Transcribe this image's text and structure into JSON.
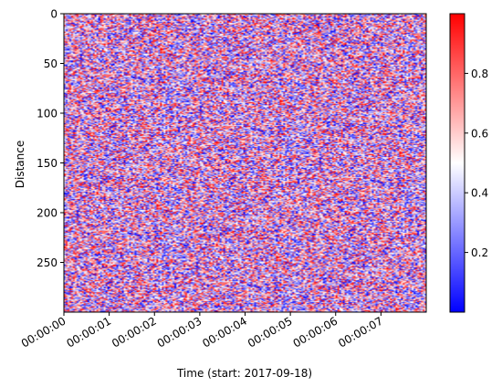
{
  "chart_data": {
    "type": "heatmap",
    "title": "",
    "xlabel": "Time (start: 2017-09-18)",
    "ylabel": "Distance",
    "x_start": "00:00:00",
    "x_end": "00:00:08",
    "x_ticks": [
      "00:00:00",
      "00:00:01",
      "00:00:02",
      "00:00:03",
      "00:00:04",
      "00:00:05",
      "00:00:06",
      "00:00:07"
    ],
    "y_ticks": [
      0,
      50,
      100,
      150,
      200,
      250
    ],
    "ylim": [
      300,
      0
    ],
    "colormap": "bwr",
    "colormap_colors": {
      "low": "#0000ff",
      "mid": "#ffffff",
      "high": "#ff0000"
    },
    "colorbar": {
      "range": [
        0,
        1
      ],
      "ticks": [
        0.2,
        0.4,
        0.6,
        0.8
      ],
      "tick_labels": [
        "0.2",
        "0.4",
        "0.6",
        "0.8"
      ]
    },
    "values": "uniform random noise in [0, 1] over a 300 x 8 s grid",
    "grid": false,
    "legend": "none"
  }
}
